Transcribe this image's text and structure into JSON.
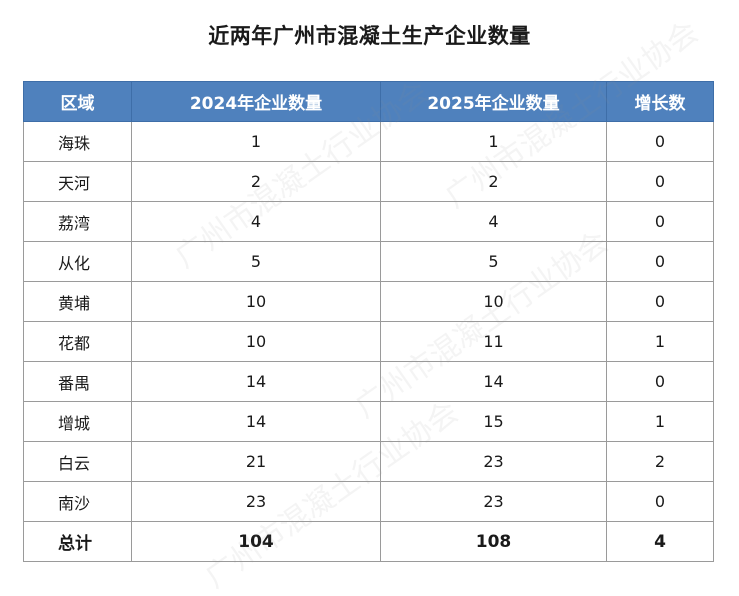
{
  "title": "近两年广州市混凝土生产企业数量",
  "headers": {
    "region": "区域",
    "y2024": "2024年企业数量",
    "y2025": "2025年企业数量",
    "growth": "增长数"
  },
  "rows": [
    {
      "region": "海珠",
      "y2024": "1",
      "y2025": "1",
      "growth": "0"
    },
    {
      "region": "天河",
      "y2024": "2",
      "y2025": "2",
      "growth": "0"
    },
    {
      "region": "荔湾",
      "y2024": "4",
      "y2025": "4",
      "growth": "0"
    },
    {
      "region": "从化",
      "y2024": "5",
      "y2025": "5",
      "growth": "0"
    },
    {
      "region": "黄埔",
      "y2024": "10",
      "y2025": "10",
      "growth": "0"
    },
    {
      "region": "花都",
      "y2024": "10",
      "y2025": "11",
      "growth": "1"
    },
    {
      "region": "番禺",
      "y2024": "14",
      "y2025": "14",
      "growth": "0"
    },
    {
      "region": "增城",
      "y2024": "14",
      "y2025": "15",
      "growth": "1"
    },
    {
      "region": "白云",
      "y2024": "21",
      "y2025": "23",
      "growth": "2"
    },
    {
      "region": "南沙",
      "y2024": "23",
      "y2025": "23",
      "growth": "0"
    }
  ],
  "total": {
    "region": "总计",
    "y2024": "104",
    "y2025": "108",
    "growth": "4"
  },
  "watermark": "广州市混凝土行业协会",
  "colors": {
    "header_bg": "#4f81bd",
    "header_text": "#ffffff",
    "border": "#9a9a9a"
  }
}
